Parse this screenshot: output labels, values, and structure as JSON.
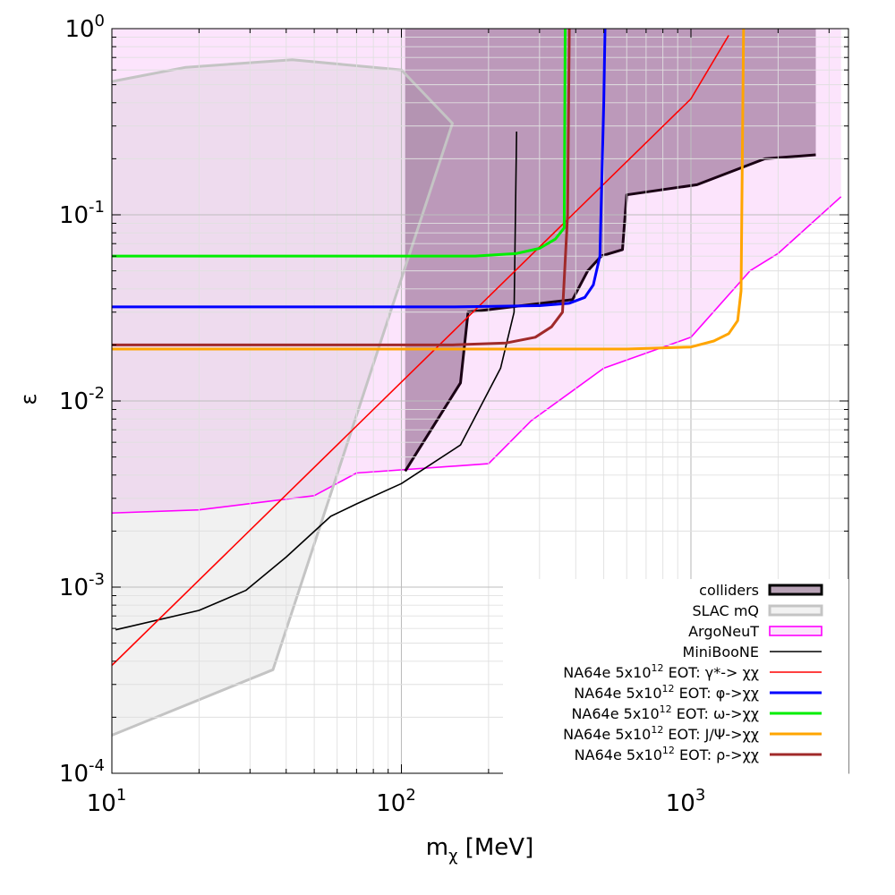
{
  "chart_data": {
    "type": "line",
    "xscale": "log",
    "yscale": "log",
    "xlim": [
      10,
      3500
    ],
    "ylim": [
      0.0001,
      1
    ],
    "xlabel_main": "m",
    "xlabel_sub": "χ",
    "xlabel_unit": " [MeV]",
    "ylabel": "ε",
    "grid": true,
    "legend_position": "bottom-right",
    "x_ticks": [
      {
        "value": 10,
        "base": "10",
        "exp": "1"
      },
      {
        "value": 100,
        "base": "10",
        "exp": "2"
      },
      {
        "value": 1000,
        "base": "10",
        "exp": "3"
      }
    ],
    "y_ticks": [
      {
        "value": 1,
        "base": "10",
        "exp": "0"
      },
      {
        "value": 0.1,
        "base": "10",
        "exp": "-1"
      },
      {
        "value": 0.01,
        "base": "10",
        "exp": "-2"
      },
      {
        "value": 0.001,
        "base": "10",
        "exp": "-3"
      },
      {
        "value": 0.0001,
        "base": "10",
        "exp": "-4"
      }
    ],
    "regions": [
      {
        "name": "ArgoNeuT",
        "fill": "#fce4fc",
        "stroke": "#ff00ff",
        "stroke_width": 1.6,
        "points": [
          [
            10,
            1
          ],
          [
            3300,
            1
          ],
          [
            3300,
            0.125
          ],
          [
            2000,
            0.062
          ],
          [
            1600,
            0.05
          ],
          [
            1000,
            0.022
          ],
          [
            500,
            0.015
          ],
          [
            280,
            0.0078
          ],
          [
            200,
            0.0046
          ],
          [
            70,
            0.0041
          ],
          [
            50,
            0.0031
          ],
          [
            20,
            0.0026
          ],
          [
            10,
            0.0025
          ]
        ],
        "outline": [
          [
            10,
            0.0025
          ],
          [
            20,
            0.0026
          ],
          [
            50,
            0.0031
          ],
          [
            70,
            0.0041
          ],
          [
            200,
            0.0046
          ],
          [
            280,
            0.0078
          ],
          [
            500,
            0.015
          ],
          [
            1000,
            0.022
          ],
          [
            1600,
            0.05
          ],
          [
            2000,
            0.062
          ],
          [
            3300,
            0.125
          ]
        ]
      },
      {
        "name": "SLAC mQ",
        "fill": "rgba(185,185,185,0.20)",
        "stroke": "#c4c4c4",
        "stroke_width": 3,
        "points": [
          [
            10,
            0.52
          ],
          [
            18,
            0.62
          ],
          [
            42,
            0.68
          ],
          [
            100,
            0.6
          ],
          [
            150,
            0.31
          ],
          [
            36,
            0.00036
          ],
          [
            10,
            0.00016
          ]
        ],
        "outline": [
          [
            10,
            0.00016
          ],
          [
            36,
            0.00036
          ],
          [
            150,
            0.31
          ],
          [
            100,
            0.6
          ],
          [
            42,
            0.68
          ],
          [
            18,
            0.62
          ],
          [
            10,
            0.52
          ]
        ]
      },
      {
        "name": "colliders",
        "fill": "rgba(100,50,95,0.42)",
        "stroke": "#1a0014",
        "stroke_width": 3,
        "points": [
          [
            103,
            1
          ],
          [
            2700,
            1
          ],
          [
            2700,
            0.21
          ],
          [
            1800,
            0.2
          ],
          [
            1050,
            0.145
          ],
          [
            600,
            0.128
          ],
          [
            580,
            0.065
          ],
          [
            490,
            0.06
          ],
          [
            440,
            0.05
          ],
          [
            390,
            0.035
          ],
          [
            330,
            0.034
          ],
          [
            170,
            0.03
          ],
          [
            160,
            0.0125
          ],
          [
            103,
            0.0042
          ]
        ],
        "outline": [
          [
            103,
            0.0042
          ],
          [
            160,
            0.0125
          ],
          [
            170,
            0.03
          ],
          [
            330,
            0.034
          ],
          [
            390,
            0.035
          ],
          [
            440,
            0.05
          ],
          [
            490,
            0.06
          ],
          [
            580,
            0.065
          ],
          [
            600,
            0.128
          ],
          [
            1050,
            0.145
          ],
          [
            1800,
            0.2
          ],
          [
            2700,
            0.21
          ]
        ]
      }
    ],
    "series": [
      {
        "name": "MiniBooNE",
        "color": "#000000",
        "width": 1.6,
        "points": [
          [
            10.3,
            0.00059
          ],
          [
            20,
            0.00075
          ],
          [
            29,
            0.00096
          ],
          [
            40,
            0.00145
          ],
          [
            57,
            0.0024
          ],
          [
            70,
            0.0028
          ],
          [
            100,
            0.0036
          ],
          [
            160,
            0.0058
          ],
          [
            220,
            0.015
          ],
          [
            245,
            0.03
          ],
          [
            250,
            0.28
          ]
        ]
      },
      {
        "name": "NA64e γ*",
        "color": "#ff0000",
        "width": 1.6,
        "points": [
          [
            10,
            0.00038
          ],
          [
            1000,
            0.42
          ],
          [
            1350,
            0.92
          ]
        ]
      },
      {
        "name": "NA64e φ",
        "color": "#0000ff",
        "width": 3,
        "points": [
          [
            10,
            0.032
          ],
          [
            150,
            0.032
          ],
          [
            300,
            0.0325
          ],
          [
            380,
            0.0335
          ],
          [
            430,
            0.036
          ],
          [
            460,
            0.042
          ],
          [
            485,
            0.06
          ],
          [
            500,
            0.4
          ],
          [
            505,
            1
          ]
        ]
      },
      {
        "name": "NA64e ω",
        "color": "#00ee00",
        "width": 3,
        "points": [
          [
            10,
            0.06
          ],
          [
            180,
            0.06
          ],
          [
            250,
            0.062
          ],
          [
            300,
            0.066
          ],
          [
            340,
            0.074
          ],
          [
            365,
            0.085
          ],
          [
            368,
            1
          ]
        ]
      },
      {
        "name": "NA64e J/Ψ",
        "color": "#ffa500",
        "width": 3,
        "points": [
          [
            10,
            0.019
          ],
          [
            600,
            0.019
          ],
          [
            1000,
            0.0195
          ],
          [
            1200,
            0.021
          ],
          [
            1350,
            0.023
          ],
          [
            1450,
            0.027
          ],
          [
            1490,
            0.039
          ],
          [
            1520,
            1
          ]
        ]
      },
      {
        "name": "NA64e ρ",
        "color": "#a02a2a",
        "width": 3,
        "points": [
          [
            10,
            0.02
          ],
          [
            150,
            0.02
          ],
          [
            230,
            0.0205
          ],
          [
            290,
            0.022
          ],
          [
            330,
            0.025
          ],
          [
            360,
            0.03
          ],
          [
            375,
            0.1
          ],
          [
            380,
            1
          ]
        ]
      }
    ],
    "legend": [
      {
        "label": "colliders",
        "sup": "",
        "suffix": "",
        "swatch": "box",
        "fill": "#b8a2b6",
        "stroke": "#000000",
        "width": 3
      },
      {
        "label": "SLAC mQ",
        "sup": "",
        "suffix": "",
        "swatch": "box",
        "fill": "#f2f2f2",
        "stroke": "#c4c4c4",
        "width": 3
      },
      {
        "label": "ArgoNeuT",
        "sup": "",
        "suffix": "",
        "swatch": "box",
        "fill": "#fce4fc",
        "stroke": "#ff00ff",
        "width": 1.6
      },
      {
        "label": "MiniBooNE",
        "sup": "",
        "suffix": "",
        "swatch": "line",
        "stroke": "#000000",
        "width": 1.6
      },
      {
        "label": "NA64e 5x10",
        "sup": "12",
        "suffix": " EOT: γ*-> χχ",
        "swatch": "line",
        "stroke": "#ff0000",
        "width": 1.6
      },
      {
        "label": "NA64e 5x10",
        "sup": "12",
        "suffix": " EOT: φ->χχ",
        "swatch": "line",
        "stroke": "#0000ff",
        "width": 3
      },
      {
        "label": "NA64e 5x10",
        "sup": "12",
        "suffix": " EOT: ω->χχ",
        "swatch": "line",
        "stroke": "#00ee00",
        "width": 3
      },
      {
        "label": "NA64e 5x10",
        "sup": "12",
        "suffix": " EOT: J/Ψ->χχ",
        "swatch": "line",
        "stroke": "#ffa500",
        "width": 3
      },
      {
        "label": "NA64e 5x10",
        "sup": "12",
        "suffix": " EOT: ρ->χχ",
        "swatch": "line",
        "stroke": "#a02a2a",
        "width": 3
      }
    ]
  }
}
